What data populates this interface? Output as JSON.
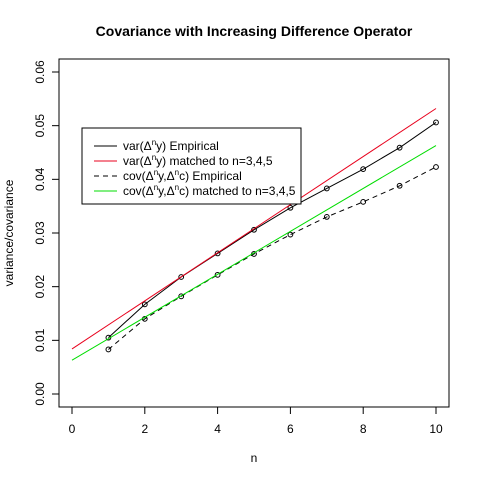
{
  "chart_data": {
    "type": "line",
    "title": "Covariance with Increasing Difference Operator",
    "xlabel": "n",
    "ylabel": "variance/covariance",
    "xlim": [
      0,
      10
    ],
    "ylim": [
      0,
      0.06
    ],
    "x_ticks": [
      0,
      2,
      4,
      6,
      8,
      10
    ],
    "y_ticks": [
      0.0,
      0.01,
      0.02,
      0.03,
      0.04,
      0.05,
      0.06
    ],
    "y_tick_labels": [
      "0.00",
      "0.01",
      "0.02",
      "0.03",
      "0.04",
      "0.05",
      "0.06"
    ],
    "grid": false,
    "legend_position": "top-left",
    "legend_entries": [
      {
        "parts": [
          "var(Δ",
          "n",
          "y) Empirical"
        ],
        "color": "#000000",
        "dash": false
      },
      {
        "parts": [
          "var(Δ",
          "n",
          "y) matched to n=3,4,5"
        ],
        "color": "#e8001c",
        "dash": false
      },
      {
        "parts": [
          "cov(Δ",
          "n",
          "y,Δ",
          "n",
          "c) Empirical"
        ],
        "color": "#000000",
        "dash": true
      },
      {
        "parts": [
          "cov(Δ",
          "n",
          "y,Δ",
          "n",
          "c) matched to n=3,4,5"
        ],
        "color": "#00dd00",
        "dash": false
      }
    ],
    "series": [
      {
        "color": "#000000",
        "style": "solid-points",
        "x": [
          1,
          2,
          3,
          4,
          5,
          6,
          7,
          8,
          9,
          10
        ],
        "y": [
          0.0105,
          0.0167,
          0.0218,
          0.0262,
          0.0306,
          0.0347,
          0.0383,
          0.0419,
          0.0459,
          0.0506
        ]
      },
      {
        "color": "#e8001c",
        "style": "line",
        "x": [
          0,
          10
        ],
        "y": [
          0.0084,
          0.0532
        ]
      },
      {
        "color": "#000000",
        "style": "dashed-points",
        "x": [
          1,
          2,
          3,
          4,
          5,
          6,
          7,
          8,
          9,
          10
        ],
        "y": [
          0.0083,
          0.014,
          0.0182,
          0.0222,
          0.0261,
          0.0297,
          0.033,
          0.0358,
          0.0388,
          0.0423
        ]
      },
      {
        "color": "#00dd00",
        "style": "line",
        "x": [
          0,
          10
        ],
        "y": [
          0.0063,
          0.0463
        ]
      }
    ]
  }
}
